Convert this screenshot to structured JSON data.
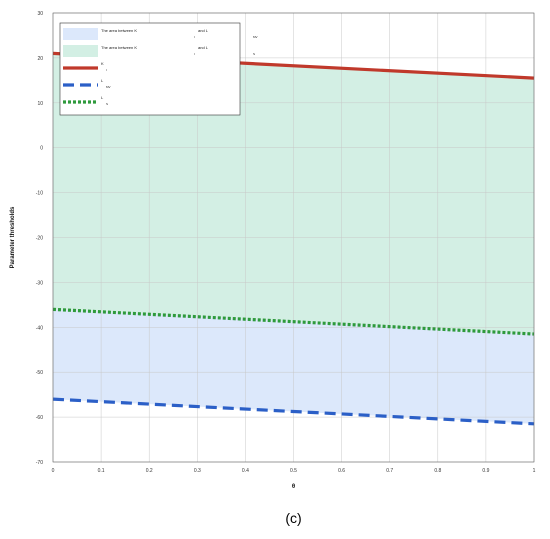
{
  "chart_data": {
    "type": "area",
    "xlabel": "θ",
    "ylabel": "Parameter thresholds",
    "xlim": [
      0,
      1
    ],
    "ylim": [
      -70,
      30
    ],
    "x_ticks": [
      0,
      0.1,
      0.2,
      0.3,
      0.4,
      0.5,
      0.6,
      0.7,
      0.8,
      0.9,
      1
    ],
    "x_tick_labels": [
      "0",
      "0.1",
      "0.2",
      "0.3",
      "0.4",
      "0.5",
      "0.6",
      "0.7",
      "0.8",
      "0.9",
      "1"
    ],
    "y_ticks": [
      30,
      20,
      10,
      0,
      -10,
      -20,
      -30,
      -40,
      -50,
      -60,
      -70
    ],
    "y_tick_labels": [
      "30",
      "20",
      "10",
      "0",
      "-10",
      "-20",
      "-30",
      "-40",
      "-50",
      "-60",
      "-70"
    ],
    "grid": true,
    "legend_position": "top-left",
    "x": [
      0,
      1
    ],
    "series": [
      {
        "key": "K_I",
        "legend_main": "K",
        "legend_sub": "I",
        "style": "solid",
        "color": "#c0392b",
        "values": [
          21,
          15.5
        ]
      },
      {
        "key": "L_MV",
        "legend_main": "L",
        "legend_sub": "MV",
        "style": "dashed",
        "color": "#2b5fc7",
        "values": [
          -56,
          -61.5
        ]
      },
      {
        "key": "L_S",
        "legend_main": "L",
        "legend_sub": "S",
        "style": "dotted",
        "color": "#2e9a3c",
        "values": [
          -36,
          -41.5
        ]
      }
    ],
    "areas": [
      {
        "key": "area-k-lmv",
        "legend_prefix": "The area between K",
        "legend_sub1": "I",
        "legend_mid": "and L",
        "legend_sub2": "MV",
        "from": "L_MV",
        "to": "K_I",
        "color": "#dce8fb"
      },
      {
        "key": "area-k-ls",
        "legend_prefix": "The area between K",
        "legend_sub1": "I",
        "legend_mid": "and L",
        "legend_sub2": "S",
        "from": "L_S",
        "to": "K_I",
        "color": "#d3efe4"
      }
    ],
    "panel_label": "(c)"
  }
}
